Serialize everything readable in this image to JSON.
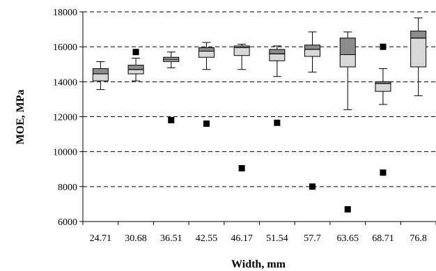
{
  "chart_data": {
    "type": "box",
    "title": "",
    "xlabel": "Width, mm",
    "ylabel": "MOE, MPa",
    "ylim": [
      6000,
      18000
    ],
    "yticks": [
      6000,
      8000,
      10000,
      12000,
      14000,
      16000,
      18000
    ],
    "ytick_labels": [
      "6000",
      "8000",
      "10000",
      "12000",
      "14000",
      "16000",
      "18000"
    ],
    "grid": "horizontal-dashed",
    "colors": {
      "lower_box": "#d8d8d8",
      "upper_box": "#8c8c8c",
      "outlier": "#000000",
      "grid": "#000000"
    },
    "categories": [
      "24.71",
      "30.68",
      "36.51",
      "42.55",
      "46.17",
      "51.54",
      "57.7",
      "63.65",
      "68.71",
      "76.8"
    ],
    "boxes": [
      {
        "category": "24.71",
        "whisker_low": 13550,
        "q1": 14050,
        "median": 14450,
        "q3": 14750,
        "whisker_high": 15150,
        "outliers": []
      },
      {
        "category": "30.68",
        "whisker_low": 14050,
        "q1": 14450,
        "median": 14700,
        "q3": 14950,
        "whisker_high": 15350,
        "outliers": [
          15700
        ]
      },
      {
        "category": "36.51",
        "whisker_low": 14800,
        "q1": 15150,
        "median": 15250,
        "q3": 15400,
        "whisker_high": 15700,
        "outliers": [
          11800
        ]
      },
      {
        "category": "42.55",
        "whisker_low": 14700,
        "q1": 15400,
        "median": 15750,
        "q3": 15950,
        "whisker_high": 16250,
        "outliers": [
          11600
        ]
      },
      {
        "category": "46.17",
        "whisker_low": 14700,
        "q1": 15500,
        "median": 15950,
        "q3": 16050,
        "whisker_high": 16150,
        "outliers": [
          9050
        ]
      },
      {
        "category": "51.54",
        "whisker_low": 14300,
        "q1": 15200,
        "median": 15600,
        "q3": 15850,
        "whisker_high": 16050,
        "outliers": [
          11650
        ]
      },
      {
        "category": "57.7",
        "whisker_low": 14550,
        "q1": 15450,
        "median": 15850,
        "q3": 16100,
        "whisker_high": 16850,
        "outliers": [
          8000
        ]
      },
      {
        "category": "63.65",
        "whisker_low": 12400,
        "q1": 14850,
        "median": 15550,
        "q3": 16500,
        "whisker_high": 16850,
        "outliers": [
          6700
        ]
      },
      {
        "category": "68.71",
        "whisker_low": 12700,
        "q1": 13450,
        "median": 13900,
        "q3": 14000,
        "whisker_high": 14750,
        "outliers": [
          16000,
          8800
        ]
      },
      {
        "category": "76.8",
        "whisker_low": 13200,
        "q1": 14850,
        "median": 16500,
        "q3": 16900,
        "whisker_high": 17650,
        "outliers": []
      }
    ]
  }
}
